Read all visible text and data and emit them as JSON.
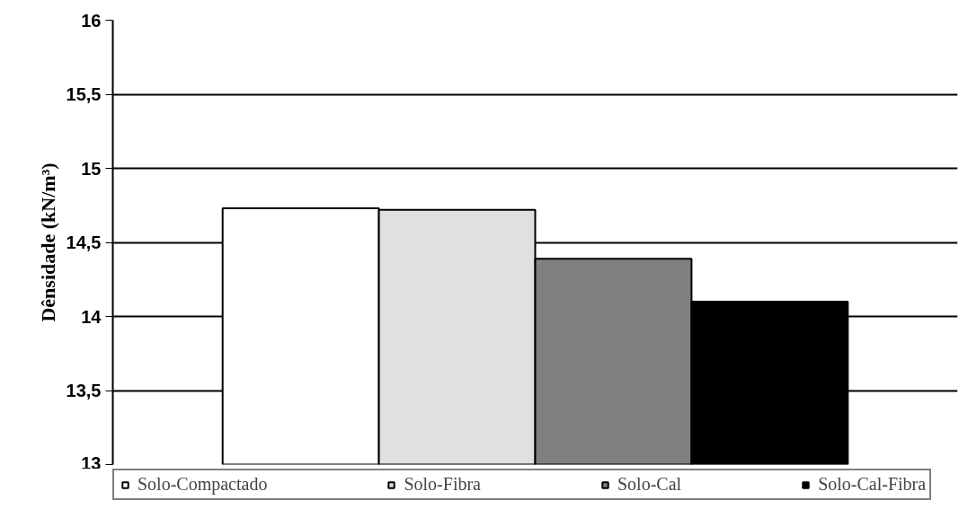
{
  "chart_data": {
    "type": "bar",
    "ylabel": "Dênsidade (kN/m³)",
    "categories": [
      null
    ],
    "series": [
      {
        "name": "Solo-Compactado",
        "color": "#ffffff",
        "values": [
          14.73
        ]
      },
      {
        "name": "Solo-Fibra",
        "color": "#e0e0e0",
        "values": [
          14.72
        ]
      },
      {
        "name": "Solo-Cal",
        "color": "#808080",
        "values": [
          14.39
        ]
      },
      {
        "name": "Solo-Cal-Fibra",
        "color": "#000000",
        "values": [
          14.1
        ]
      }
    ],
    "ylim": [
      13,
      16
    ],
    "yticks": [
      13,
      {
        "value": 13.5,
        "label": "13,5"
      },
      14,
      {
        "value": 14.5,
        "label": "14,5"
      },
      15,
      {
        "value": 15.5,
        "label": "15,5"
      },
      16
    ],
    "grid": "y",
    "legend": "bottom"
  }
}
